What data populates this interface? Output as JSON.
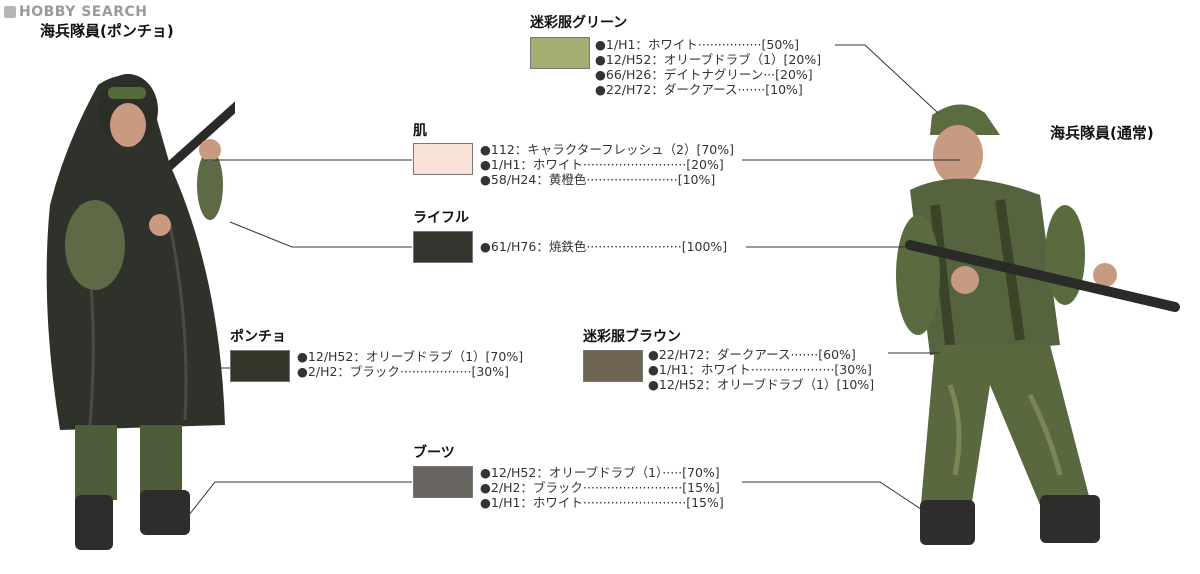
{
  "watermark": "HOBBY SEARCH",
  "figures": {
    "left_title": "海兵隊員(ポンチョ)",
    "right_title": "海兵隊員(通常)"
  },
  "groups": {
    "camo_green": {
      "title": "迷彩服グリーン",
      "color": "#a3ae72",
      "lines": [
        "●1/H1：ホワイト················[50%]",
        "●12/H52：オリーブドラブ（1）[20%]",
        "●66/H26：デイトナグリーン···[20%]",
        "●22/H72：ダークアース·······[10%]"
      ]
    },
    "skin": {
      "title": "肌",
      "color": "#fbe2d8",
      "lines": [
        "●112：キャラクターフレッシュ（2）[70%]",
        "●1/H1：ホワイト··························[20%]",
        "●58/H24：黄橙色·······················[10%]"
      ]
    },
    "rifle": {
      "title": "ライフル",
      "color": "#33352e",
      "lines": [
        "●61/H76：焼鉄色························[100%]"
      ]
    },
    "poncho": {
      "title": "ポンチョ",
      "color": "#353529",
      "lines": [
        "●12/H52：オリーブドラブ（1）[70%]",
        "●2/H2：ブラック··················[30%]"
      ]
    },
    "camo_brown": {
      "title": "迷彩服ブラウン",
      "color": "#6f6552",
      "lines": [
        "●22/H72：ダークアース·······[60%]",
        "●1/H1：ホワイト·····················[30%]",
        "●12/H52：オリーブドラブ（1）[10%]"
      ]
    },
    "boots": {
      "title": "ブーツ",
      "color": "#696560",
      "lines": [
        "●12/H52：オリーブドラブ（1）·····[70%]",
        "●2/H2：ブラック·························[15%]",
        "●1/H1：ホワイト··························[15%]"
      ]
    }
  }
}
